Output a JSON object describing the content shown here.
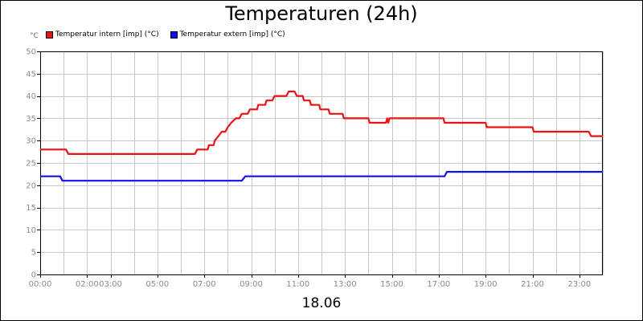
{
  "chart_data": {
    "type": "line",
    "title": "Temperaturen (24h)",
    "xlabel": "18.06",
    "ylabel": "°C",
    "ylim": [
      0,
      50
    ],
    "yticks": [
      0,
      5,
      10,
      15,
      20,
      25,
      30,
      35,
      40,
      45,
      50
    ],
    "xlim": [
      0,
      24
    ],
    "xticks": [
      {
        "x": 0,
        "label": "00:00"
      },
      {
        "x": 2,
        "label": "02:00"
      },
      {
        "x": 3,
        "label": "03:00"
      },
      {
        "x": 5,
        "label": "05:00"
      },
      {
        "x": 7,
        "label": "07:00"
      },
      {
        "x": 9,
        "label": "09:00"
      },
      {
        "x": 11,
        "label": "11:00"
      },
      {
        "x": 13,
        "label": "13:00"
      },
      {
        "x": 15,
        "label": "15:00"
      },
      {
        "x": 17,
        "label": "17:00"
      },
      {
        "x": 19,
        "label": "19:00"
      },
      {
        "x": 21,
        "label": "21:00"
      },
      {
        "x": 23,
        "label": "23:00"
      }
    ],
    "grid": true,
    "legend_position": "top-left",
    "series": [
      {
        "name": "Temperatur intern [imp] (°C)",
        "color": "#ee1111",
        "points": [
          [
            0,
            28
          ],
          [
            1.1,
            28
          ],
          [
            1.2,
            27
          ],
          [
            6.6,
            27
          ],
          [
            6.7,
            28
          ],
          [
            7.15,
            28
          ],
          [
            7.2,
            29
          ],
          [
            7.4,
            29
          ],
          [
            7.45,
            30
          ],
          [
            7.6,
            31
          ],
          [
            7.75,
            32
          ],
          [
            7.9,
            32
          ],
          [
            8.0,
            33
          ],
          [
            8.15,
            34
          ],
          [
            8.35,
            35
          ],
          [
            8.5,
            35
          ],
          [
            8.6,
            36
          ],
          [
            8.85,
            36
          ],
          [
            8.95,
            37
          ],
          [
            9.25,
            37
          ],
          [
            9.3,
            38
          ],
          [
            9.6,
            38
          ],
          [
            9.65,
            39
          ],
          [
            9.9,
            39
          ],
          [
            10.0,
            40
          ],
          [
            10.5,
            40
          ],
          [
            10.6,
            41
          ],
          [
            10.85,
            41
          ],
          [
            10.95,
            40
          ],
          [
            11.2,
            40
          ],
          [
            11.25,
            39
          ],
          [
            11.5,
            39
          ],
          [
            11.55,
            38
          ],
          [
            11.9,
            38
          ],
          [
            11.95,
            37
          ],
          [
            12.3,
            37
          ],
          [
            12.35,
            36
          ],
          [
            12.9,
            36
          ],
          [
            12.95,
            35
          ],
          [
            14.0,
            35
          ],
          [
            14.05,
            34
          ],
          [
            14.75,
            34
          ],
          [
            14.8,
            35
          ],
          [
            14.85,
            34
          ],
          [
            14.9,
            35
          ],
          [
            17.2,
            35
          ],
          [
            17.25,
            34
          ],
          [
            19.0,
            34
          ],
          [
            19.05,
            33
          ],
          [
            21.0,
            33
          ],
          [
            21.05,
            32
          ],
          [
            23.4,
            32
          ],
          [
            23.5,
            31
          ],
          [
            24,
            31
          ]
        ]
      },
      {
        "name": "Temperatur extern [imp] (°C)",
        "color": "#1111ee",
        "points": [
          [
            0,
            22
          ],
          [
            0.85,
            22
          ],
          [
            0.95,
            21
          ],
          [
            8.6,
            21
          ],
          [
            8.75,
            22
          ],
          [
            17.25,
            22
          ],
          [
            17.35,
            23
          ],
          [
            24,
            23
          ]
        ]
      }
    ]
  }
}
